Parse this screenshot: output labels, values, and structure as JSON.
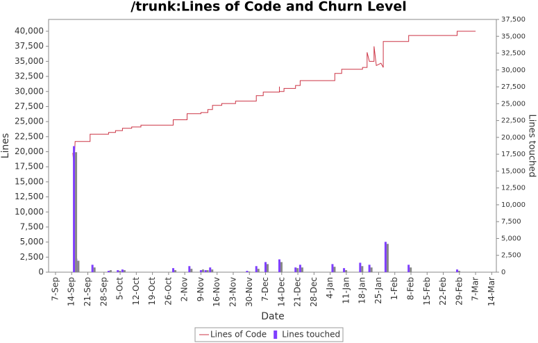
{
  "chart_data": {
    "type": "line",
    "title": "/trunk:Lines of Code and Churn Level",
    "x_label": "Date",
    "y_label": "Lines",
    "y2_label": "Lines touched",
    "xlim": [
      -3,
      191
    ],
    "xticks": [
      {
        "value": 0,
        "label": "7-Sep"
      },
      {
        "value": 7,
        "label": "14-Sep"
      },
      {
        "value": 14,
        "label": "21-Sep"
      },
      {
        "value": 21,
        "label": "28-Sep"
      },
      {
        "value": 28,
        "label": "5-Oct"
      },
      {
        "value": 35,
        "label": "12-Oct"
      },
      {
        "value": 42,
        "label": "19-Oct"
      },
      {
        "value": 49,
        "label": "26-Oct"
      },
      {
        "value": 56,
        "label": "2-Nov"
      },
      {
        "value": 63,
        "label": "9-Nov"
      },
      {
        "value": 70,
        "label": "16-Nov"
      },
      {
        "value": 77,
        "label": "23-Nov"
      },
      {
        "value": 84,
        "label": "30-Nov"
      },
      {
        "value": 91,
        "label": "7-Dec"
      },
      {
        "value": 98,
        "label": "14-Dec"
      },
      {
        "value": 105,
        "label": "21-Dec"
      },
      {
        "value": 112,
        "label": "28-Dec"
      },
      {
        "value": 119,
        "label": "4-Jan"
      },
      {
        "value": 126,
        "label": "11-Jan"
      },
      {
        "value": 133,
        "label": "18-Jan"
      },
      {
        "value": 140,
        "label": "25-Jan"
      },
      {
        "value": 147,
        "label": "1-Feb"
      },
      {
        "value": 154,
        "label": "8-Feb"
      },
      {
        "value": 161,
        "label": "15-Feb"
      },
      {
        "value": 168,
        "label": "22-Feb"
      },
      {
        "value": 175,
        "label": "29-Feb"
      },
      {
        "value": 182,
        "label": "7-Mar"
      },
      {
        "value": 189,
        "label": "14-Mar"
      }
    ],
    "ylim": [
      0,
      41960
    ],
    "yticks": [
      0,
      {
        "value": 2500,
        "label": "2,500"
      },
      {
        "value": 5000,
        "label": "5,000"
      },
      {
        "value": 7500,
        "label": "7,500"
      },
      {
        "value": 10000,
        "label": "10,000"
      },
      {
        "value": 12500,
        "label": "12,500"
      },
      {
        "value": 15000,
        "label": "15,000"
      },
      {
        "value": 17500,
        "label": "17,500"
      },
      {
        "value": 20000,
        "label": "20,000"
      },
      {
        "value": 22500,
        "label": "22,500"
      },
      {
        "value": 25000,
        "label": "25,000"
      },
      {
        "value": 27500,
        "label": "27,500"
      },
      {
        "value": 30000,
        "label": "30,000"
      },
      {
        "value": 32500,
        "label": "32,500"
      },
      {
        "value": 35000,
        "label": "35,000"
      },
      {
        "value": 37500,
        "label": "37,500"
      },
      {
        "value": 40000,
        "label": "40,000"
      }
    ],
    "y2lim": [
      0,
      37500
    ],
    "y2ticks": [
      0,
      {
        "value": 2500,
        "label": "2,500"
      },
      {
        "value": 5000,
        "label": "5,000"
      },
      {
        "value": 7500,
        "label": "7,500"
      },
      {
        "value": 10000,
        "label": "10,000"
      },
      {
        "value": 12500,
        "label": "12,500"
      },
      {
        "value": 15000,
        "label": "15,000"
      },
      {
        "value": 17500,
        "label": "17,500"
      },
      {
        "value": 20000,
        "label": "20,000"
      },
      {
        "value": 22500,
        "label": "22,500"
      },
      {
        "value": 25000,
        "label": "25,000"
      },
      {
        "value": 27500,
        "label": "27,500"
      },
      {
        "value": 30000,
        "label": "30,000"
      },
      {
        "value": 32500,
        "label": "32,500"
      },
      {
        "value": 35000,
        "label": "35,000"
      },
      {
        "value": 37500,
        "label": "37,500"
      }
    ],
    "legend": "bottom",
    "series": [
      {
        "name": "Lines of Code",
        "type": "line",
        "color": "#cc3344",
        "x": [
          7.5,
          8,
          8.5,
          15,
          15,
          23,
          23,
          26,
          26,
          29,
          29,
          33,
          33,
          37,
          37,
          51,
          51,
          57,
          57,
          63,
          63,
          66,
          66,
          68,
          68,
          72,
          72,
          78,
          78,
          87,
          87,
          90,
          90,
          97,
          97,
          97,
          99,
          99,
          104,
          104,
          106,
          106,
          121,
          121,
          124,
          124,
          133,
          133,
          135,
          135,
          136,
          138,
          138,
          139,
          141,
          142,
          142,
          153,
          153,
          174,
          174,
          182
        ],
        "values": [
          19800,
          17500,
          21700,
          21700,
          22900,
          22900,
          23200,
          23200,
          23500,
          23500,
          23900,
          23900,
          24100,
          24100,
          24400,
          24400,
          25300,
          25300,
          26300,
          26300,
          26500,
          26500,
          27000,
          27000,
          27700,
          27700,
          28000,
          28000,
          28400,
          28400,
          29300,
          29300,
          29900,
          29900,
          30800,
          30000,
          30000,
          30500,
          30500,
          31000,
          31000,
          31800,
          31800,
          33000,
          33000,
          33700,
          33700,
          34000,
          34000,
          36500,
          35000,
          35000,
          37500,
          34300,
          34700,
          34000,
          38300,
          38300,
          39300,
          39300,
          40000,
          40000
        ]
      },
      {
        "name": "Lines touched",
        "type": "bar",
        "axis": "y2",
        "color": "#7f3fff",
        "x": [
          8,
          9,
          16,
          23,
          27,
          29,
          51,
          58,
          63,
          65,
          67,
          83,
          87,
          91,
          97,
          104,
          106,
          120,
          125,
          132,
          136,
          143,
          153,
          174
        ],
        "values": [
          18700,
          2000,
          1100,
          200,
          300,
          400,
          600,
          900,
          300,
          300,
          700,
          200,
          900,
          1500,
          1900,
          700,
          1100,
          1200,
          600,
          1400,
          1100,
          4500,
          1100,
          400
        ]
      },
      {
        "type": "bar",
        "axis": "y2",
        "color": "#888888",
        "offset": true,
        "x": [
          8,
          9,
          16,
          23,
          27,
          29,
          51,
          58,
          63,
          65,
          67,
          83,
          87,
          91,
          97,
          104,
          106,
          120,
          125,
          132,
          136,
          143,
          153,
          174
        ],
        "values": [
          17800,
          1700,
          700,
          300,
          200,
          300,
          300,
          500,
          400,
          300,
          400,
          100,
          500,
          1200,
          1500,
          600,
          700,
          800,
          300,
          900,
          700,
          4200,
          700,
          200
        ]
      }
    ]
  }
}
